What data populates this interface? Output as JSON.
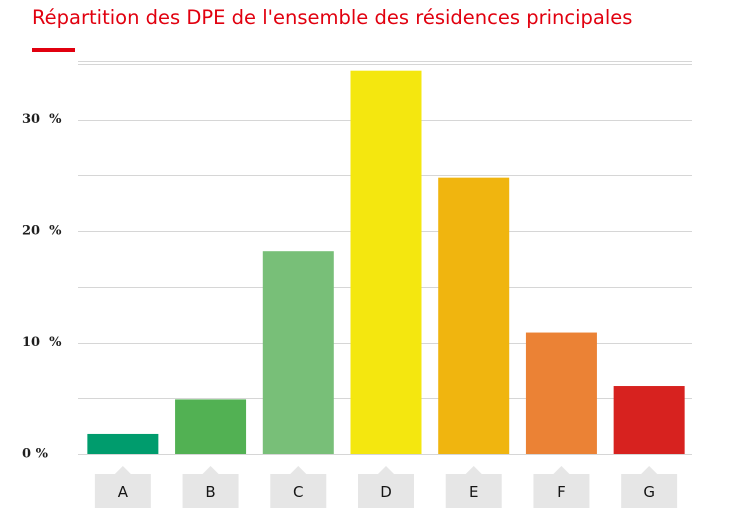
{
  "chart_data": {
    "type": "bar",
    "title": "Répartition des DPE de l'ensemble des résidences principales",
    "categories": [
      "A",
      "B",
      "C",
      "D",
      "E",
      "F",
      "G"
    ],
    "values": [
      1.8,
      4.9,
      18.2,
      34.4,
      24.8,
      10.9,
      6.1
    ],
    "colors": [
      "#009c6d",
      "#52b153",
      "#78bf78",
      "#f4e70f",
      "#f0b50f",
      "#eb8235",
      "#d7221f"
    ],
    "ylim": [
      0,
      35
    ],
    "yticks": [
      {
        "value": 0,
        "label": "0 %"
      },
      {
        "value": 10,
        "label": "10  %"
      },
      {
        "value": 20,
        "label": "20  %"
      },
      {
        "value": 30,
        "label": "30  %"
      }
    ],
    "grid": true,
    "xlabel": "",
    "ylabel": ""
  }
}
